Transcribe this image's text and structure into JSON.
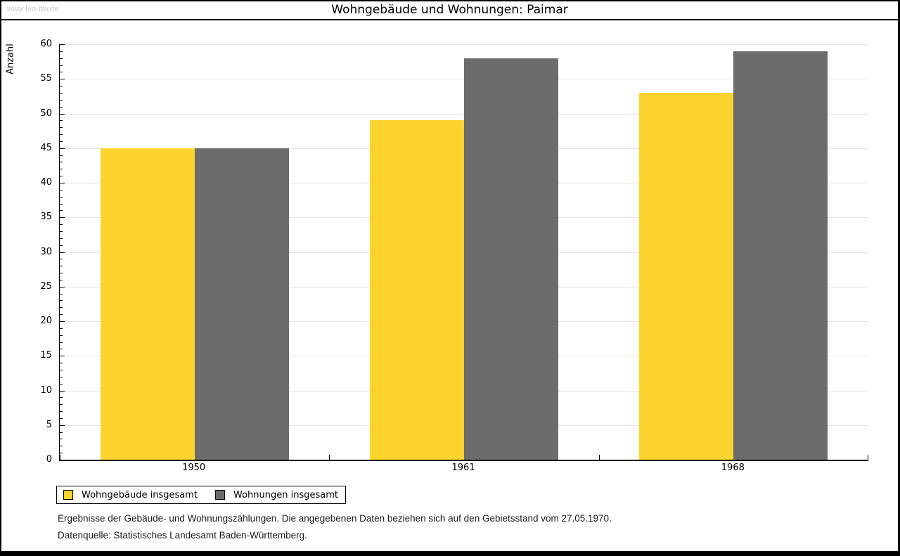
{
  "watermark": "www.leo-bw.de",
  "title": "Wohngebäude und Wohnungen: Paimar",
  "chart_data": {
    "type": "bar",
    "categories": [
      "1950",
      "1961",
      "1968"
    ],
    "series": [
      {
        "name": "Wohngebäude insgesamt",
        "color": "#FDD32E",
        "values": [
          45,
          49,
          53
        ]
      },
      {
        "name": "Wohnungen insgesamt",
        "color": "#6C6C6C",
        "values": [
          45,
          58,
          59
        ]
      }
    ],
    "title": "Wohngebäude und Wohnungen: Paimar",
    "xlabel": "",
    "ylabel": "Anzahl",
    "ylim": [
      0,
      60
    ],
    "yticks": [
      0,
      5,
      10,
      15,
      20,
      25,
      30,
      35,
      40,
      45,
      50,
      55,
      60
    ],
    "ytick_minor_step": 1,
    "grid": true,
    "gridline_color": "#e4e4e4",
    "legend_position": "bottom-left"
  },
  "footer": {
    "line1": "Ergebnisse der Gebäude- und Wohnungszählungen. Die angegebenen Daten beziehen sich auf den Gebietsstand vom 27.05.1970.",
    "line2": "Datenquelle: Statistisches Landesamt Baden-Württemberg."
  }
}
